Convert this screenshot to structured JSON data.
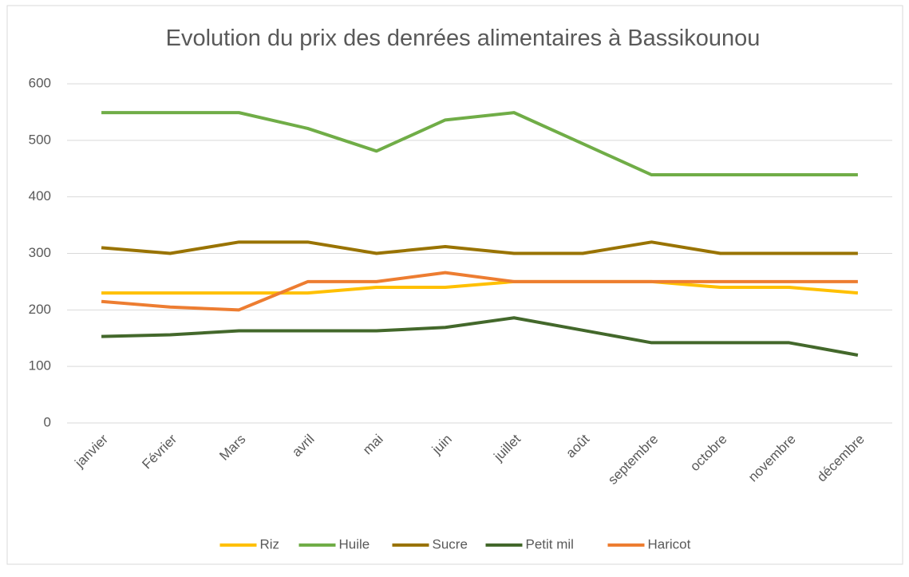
{
  "chart_data": {
    "type": "line",
    "title": "Evolution du prix des denrées alimentaires à Bassikounou",
    "categories": [
      "janvier",
      "Février",
      "Mars",
      "avril",
      "mai",
      "juin",
      "juillet",
      "août",
      "septembre",
      "octobre",
      "novembre",
      "décembre"
    ],
    "series": [
      {
        "name": "Riz",
        "color": "#ffc000",
        "values": [
          230,
          230,
          230,
          230,
          240,
          240,
          250,
          250,
          250,
          240,
          240,
          230
        ]
      },
      {
        "name": "Huile",
        "color": "#70ad47",
        "values": [
          549,
          549,
          549,
          521,
          481,
          536,
          549,
          494,
          439,
          439,
          439,
          439
        ]
      },
      {
        "name": "Sucre",
        "color": "#997300",
        "values": [
          310,
          300,
          320,
          320,
          300,
          312,
          300,
          300,
          320,
          300,
          300,
          300
        ]
      },
      {
        "name": "Petit mil",
        "color": "#43682b",
        "values": [
          153,
          156,
          163,
          163,
          163,
          169,
          186,
          164,
          142,
          142,
          142,
          120
        ]
      },
      {
        "name": "Haricot",
        "color": "#ed7d31",
        "values": [
          215,
          205,
          200,
          250,
          250,
          266,
          250,
          250,
          250,
          250,
          250,
          250
        ]
      }
    ],
    "ylim": [
      0,
      600
    ],
    "yticks": [
      0,
      100,
      200,
      300,
      400,
      500,
      600
    ],
    "grid": true,
    "legend": "bottom"
  }
}
